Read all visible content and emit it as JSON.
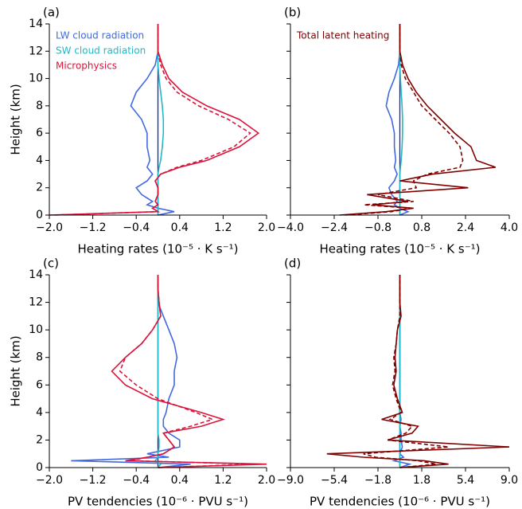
{
  "chart_data": [
    {
      "type": "line",
      "panel_label": "(a)",
      "ylabel": "Height (km)",
      "xlabel": "Heating rates (10⁻⁵ · K s⁻¹)",
      "y": [
        0,
        0.25,
        0.5,
        0.75,
        1,
        1.5,
        2,
        2.5,
        3,
        3.5,
        4,
        5,
        6,
        7,
        8,
        9,
        10,
        11,
        12,
        13,
        14
      ],
      "xlim": [
        -2,
        2
      ],
      "xticks": [
        {
          "value": -2,
          "label": "−2.0"
        },
        {
          "value": -1.2,
          "label": "−1.2"
        },
        {
          "value": -0.4,
          "label": "−0.4"
        },
        0.4,
        1.2,
        {
          "value": 2,
          "label": "2.0"
        }
      ],
      "ylim": [
        0,
        14
      ],
      "yticks": [
        0,
        2,
        4,
        6,
        8,
        10,
        12,
        14
      ],
      "series": [
        {
          "name": "LW cloud radiation",
          "color": "#4169e1",
          "values": [
            0,
            0.3,
            0,
            -0.2,
            -0.1,
            -0.3,
            -0.4,
            -0.2,
            -0.1,
            -0.2,
            -0.15,
            -0.2,
            -0.2,
            -0.3,
            -0.5,
            -0.4,
            -0.2,
            -0.05,
            0,
            0,
            0
          ]
        },
        {
          "name": "SW cloud radiation",
          "color": "#20b8c8",
          "values": [
            0,
            0,
            0,
            0,
            0,
            0,
            0,
            0,
            0,
            0.02,
            0.05,
            0.08,
            0.1,
            0.1,
            0.08,
            0.05,
            0.02,
            0,
            0,
            0,
            0
          ]
        },
        {
          "name": "Microphysics",
          "color": "#dc143c",
          "values": [
            -2,
            0,
            -0.1,
            0,
            -0.05,
            0,
            0,
            -0.05,
            0.05,
            0.4,
            0.9,
            1.5,
            1.85,
            1.5,
            0.9,
            0.45,
            0.2,
            0.08,
            0,
            0,
            0
          ],
          "dashed_values": [
            -1.9,
            0,
            -0.1,
            0,
            -0.05,
            0,
            0,
            -0.05,
            0.05,
            0.35,
            0.8,
            1.4,
            1.7,
            1.3,
            0.75,
            0.35,
            0.15,
            0.05,
            0,
            0,
            0
          ]
        }
      ]
    },
    {
      "type": "line",
      "panel_label": "(b)",
      "xlabel": "Heating rates (10⁻⁵ · K s⁻¹)",
      "y": [
        0,
        0.25,
        0.5,
        0.75,
        1,
        1.5,
        2,
        2.5,
        3,
        3.5,
        4,
        5,
        6,
        7,
        8,
        9,
        10,
        11,
        12,
        13,
        14
      ],
      "xlim": [
        -4,
        4
      ],
      "xticks": [
        {
          "value": -4,
          "label": "−4.0"
        },
        {
          "value": -2.4,
          "label": "−2.4"
        },
        {
          "value": -0.8,
          "label": "−0.8"
        },
        0.8,
        2.4,
        {
          "value": 4,
          "label": "4.0"
        }
      ],
      "ylim": [
        0,
        14
      ],
      "yticks": [
        0,
        2,
        4,
        6,
        8,
        10,
        12,
        14
      ],
      "series": [
        {
          "color": "#4169e1",
          "values": [
            0,
            0.3,
            0,
            -0.2,
            -0.1,
            -0.3,
            -0.4,
            -0.2,
            -0.1,
            -0.2,
            -0.15,
            -0.2,
            -0.2,
            -0.3,
            -0.5,
            -0.4,
            -0.2,
            -0.05,
            0,
            0,
            0
          ]
        },
        {
          "color": "#20b8c8",
          "values": [
            0,
            0,
            0,
            0,
            0,
            0,
            0,
            0,
            0,
            0.02,
            0.05,
            0.08,
            0.1,
            0.1,
            0.08,
            0.05,
            0.02,
            0,
            0,
            0,
            0
          ]
        },
        {
          "name": "Total latent heating",
          "color": "#800000",
          "values": [
            -2.2,
            -0.5,
            0.5,
            -1,
            0.3,
            -1.2,
            2.5,
            0,
            1.2,
            3.5,
            2.8,
            2.6,
            2,
            1.5,
            1,
            0.6,
            0.3,
            0.1,
            0,
            0,
            0
          ],
          "dashed_values": [
            -2,
            -0.3,
            0.4,
            -1.3,
            0.5,
            -0.8,
            0.6,
            0.5,
            1,
            2.2,
            2.3,
            2.2,
            1.8,
            1.3,
            0.8,
            0.5,
            0.2,
            0.05,
            0,
            0,
            0
          ]
        }
      ]
    },
    {
      "type": "line",
      "panel_label": "(c)",
      "ylabel": "Height (km)",
      "xlabel": "PV tendencies (10⁻⁶ · PVU s⁻¹)",
      "y": [
        0,
        0.25,
        0.5,
        0.75,
        1,
        1.5,
        2,
        2.5,
        3,
        3.5,
        4,
        5,
        6,
        7,
        8,
        9,
        10,
        11,
        12,
        13,
        14
      ],
      "xlim": [
        -2,
        2
      ],
      "xticks": [
        {
          "value": -2,
          "label": "−2.0"
        },
        {
          "value": -1.2,
          "label": "−1.2"
        },
        {
          "value": -0.4,
          "label": "−0.4"
        },
        0.4,
        1.2,
        {
          "value": 2,
          "label": "2.0"
        }
      ],
      "ylim": [
        0,
        14
      ],
      "yticks": [
        0,
        2,
        4,
        6,
        8,
        10,
        12,
        14
      ],
      "series": [
        {
          "color": "#4169e1",
          "values": [
            0,
            0.6,
            -1.6,
            0.2,
            -0.2,
            0.4,
            0.4,
            0.2,
            0.1,
            0.1,
            0.15,
            0.2,
            0.3,
            0.3,
            0.35,
            0.3,
            0.2,
            0.1,
            0,
            0,
            0
          ]
        },
        {
          "color": "#20b8c8",
          "values": [
            0,
            0.05,
            -0.05,
            0,
            0,
            0.02,
            0.02,
            0,
            0,
            0,
            0,
            0,
            0,
            0,
            0,
            0,
            0,
            0,
            0,
            0,
            0
          ]
        },
        {
          "color": "#dc143c",
          "values": [
            0,
            2,
            -0.6,
            -0.2,
            0.1,
            0.3,
            0.2,
            0.1,
            0.8,
            1.2,
            0.8,
            -0.1,
            -0.6,
            -0.85,
            -0.6,
            -0.3,
            -0.1,
            0.05,
            0.02,
            0,
            0
          ],
          "dashed_values": [
            0,
            1.8,
            -0.5,
            -0.2,
            0.1,
            0.3,
            0.2,
            0.1,
            0.6,
            1,
            0.7,
            0,
            -0.4,
            -0.7,
            -0.6,
            -0.3,
            -0.1,
            0.05,
            0.02,
            0,
            0
          ]
        }
      ]
    },
    {
      "type": "line",
      "panel_label": "(d)",
      "xlabel": "PV tendencies (10⁻⁶ · PVU s⁻¹)",
      "y": [
        0,
        0.25,
        0.5,
        0.75,
        1,
        1.5,
        2,
        2.5,
        3,
        3.5,
        4,
        5,
        6,
        7,
        8,
        9,
        10,
        11,
        12,
        13,
        14
      ],
      "xlim": [
        -9,
        9
      ],
      "xticks": [
        {
          "value": -9,
          "label": "−9.0"
        },
        {
          "value": -5.4,
          "label": "−5.4"
        },
        {
          "value": -1.8,
          "label": "−1.8"
        },
        1.8,
        5.4,
        {
          "value": 9,
          "label": "9.0"
        }
      ],
      "ylim": [
        0,
        14
      ],
      "yticks": [
        0,
        2,
        4,
        6,
        8,
        10,
        12,
        14
      ],
      "series": [
        {
          "color": "#4169e1",
          "values": [
            0,
            0.8,
            -0.5,
            0.3,
            0,
            0.2,
            0.1,
            0.1,
            0,
            0.1,
            0,
            0,
            0,
            0,
            0,
            0,
            0,
            0,
            0,
            0,
            0
          ]
        },
        {
          "color": "#20b8c8",
          "values": [
            0,
            0,
            0,
            0,
            0,
            0,
            0,
            0,
            0,
            0,
            0,
            0,
            0,
            0,
            0,
            0,
            0,
            0,
            0,
            0,
            0
          ]
        },
        {
          "color": "#800000",
          "values": [
            0,
            4,
            2,
            -3,
            -6,
            9,
            -1,
            1,
            1.5,
            -1.5,
            0.2,
            -0.2,
            -0.5,
            -0.3,
            -0.4,
            -0.3,
            -0.2,
            0.1,
            0,
            0,
            0
          ],
          "dashed_values": [
            0,
            3,
            1.5,
            -2,
            -3,
            4,
            -1,
            0.5,
            1,
            -0.8,
            0.1,
            -0.3,
            -0.6,
            -0.4,
            -0.5,
            -0.3,
            -0.2,
            0,
            0,
            0,
            0
          ]
        }
      ]
    }
  ]
}
